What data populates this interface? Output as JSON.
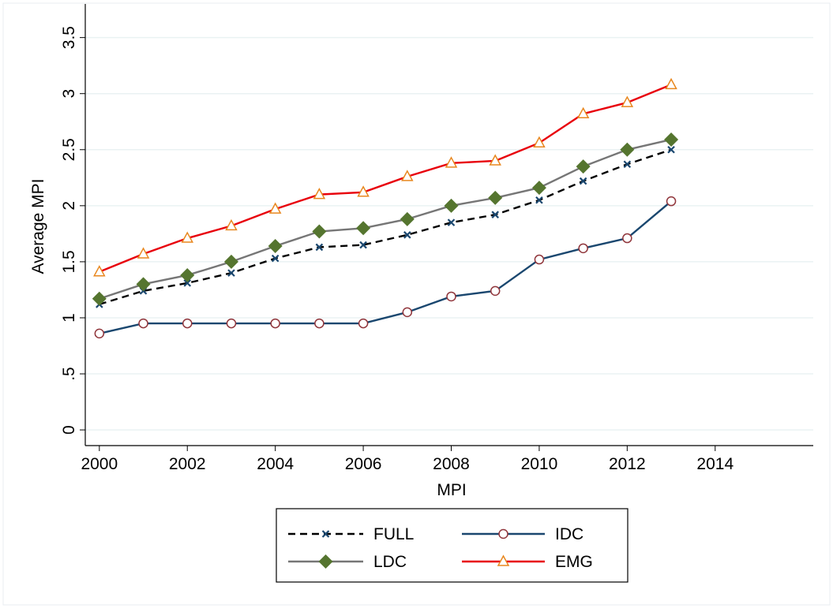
{
  "chart_data": {
    "type": "line",
    "xlabel": "MPI",
    "ylabel": "Average MPI",
    "x": [
      2000,
      2001,
      2002,
      2003,
      2004,
      2005,
      2006,
      2007,
      2008,
      2009,
      2010,
      2011,
      2012,
      2013
    ],
    "series": [
      {
        "name": "FULL",
        "color": "#000000",
        "dash": true,
        "marker": "x",
        "marker_color": "#1a476f",
        "values": [
          1.12,
          1.24,
          1.31,
          1.4,
          1.53,
          1.63,
          1.65,
          1.74,
          1.85,
          1.92,
          2.05,
          2.22,
          2.37,
          2.5
        ]
      },
      {
        "name": "IDC",
        "color": "#1a476f",
        "dash": false,
        "marker": "circle",
        "marker_color": "#90353b",
        "values": [
          0.86,
          0.95,
          0.95,
          0.95,
          0.95,
          0.95,
          0.95,
          1.05,
          1.19,
          1.24,
          1.52,
          1.62,
          1.71,
          2.04
        ]
      },
      {
        "name": "LDC",
        "color": "#767676",
        "dash": false,
        "marker": "diamond",
        "marker_color": "#55752f",
        "values": [
          1.17,
          1.3,
          1.38,
          1.5,
          1.64,
          1.77,
          1.8,
          1.88,
          2.0,
          2.07,
          2.16,
          2.35,
          2.5,
          2.59
        ]
      },
      {
        "name": "EMG",
        "color": "#e8000b",
        "dash": false,
        "marker": "triangle",
        "marker_color": "#e8871e",
        "values": [
          1.41,
          1.57,
          1.71,
          1.82,
          1.97,
          2.1,
          2.12,
          2.26,
          2.38,
          2.4,
          2.56,
          2.82,
          2.92,
          3.08
        ]
      }
    ],
    "xlim": [
      1999.68,
      2016.23
    ],
    "xticks": [
      2000,
      2002,
      2004,
      2006,
      2008,
      2010,
      2012,
      2014
    ],
    "ylim": [
      -0.14,
      3.8
    ],
    "yticks": [
      0,
      {
        "value": 0.5,
        "label": ".5"
      },
      1,
      1.5,
      2,
      2.5,
      3,
      3.5
    ],
    "grid": true,
    "legend": "bottom"
  }
}
